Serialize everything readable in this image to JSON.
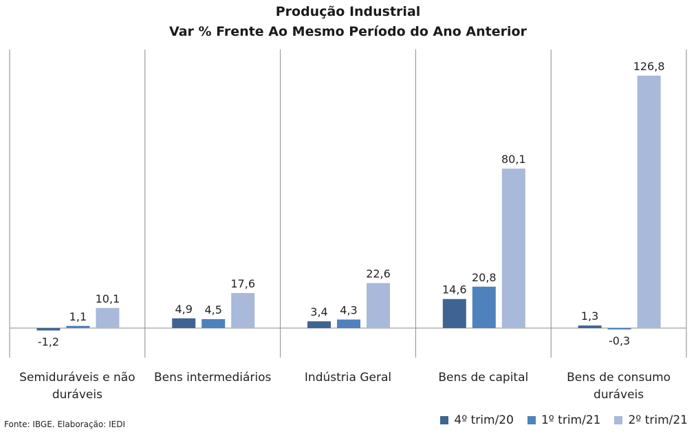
{
  "chart_data": {
    "type": "bar",
    "title": "Produção Industrial",
    "subtitle": "Var % Frente Ao Mesmo Período do Ano Anterior",
    "categories": [
      "Semiduráveis e não duráveis",
      "Bens intermediários",
      "Indústria Geral",
      "Bens de capital",
      "Bens de consumo duráveis"
    ],
    "category_lines": [
      [
        "Semiduráveis e não",
        "duráveis"
      ],
      [
        "Bens intermediários"
      ],
      [
        "Indústria Geral"
      ],
      [
        "Bens de capital"
      ],
      [
        "Bens de consumo",
        "duráveis"
      ]
    ],
    "series": [
      {
        "name": "4º trim/20",
        "color": "#3f6494",
        "values": [
          -1.2,
          4.9,
          3.4,
          14.6,
          1.3
        ],
        "labels": [
          "-1,2",
          "4,9",
          "3,4",
          "14,6",
          "1,3"
        ]
      },
      {
        "name": "1º trim/21",
        "color": "#4f81bd",
        "values": [
          1.1,
          4.5,
          4.3,
          20.8,
          -0.3
        ],
        "labels": [
          "1,1",
          "4,5",
          "4,3",
          "20,8",
          "-0,3"
        ]
      },
      {
        "name": "2º trim/21",
        "color": "#a8b9d9",
        "values": [
          10.1,
          17.6,
          22.6,
          80.1,
          126.8
        ],
        "labels": [
          "10,1",
          "17,6",
          "22,6",
          "80,1",
          "126,8"
        ]
      }
    ],
    "legend_position": "bottom-right"
  },
  "source": "Fonte: IBGE. Elaboração: IEDI"
}
